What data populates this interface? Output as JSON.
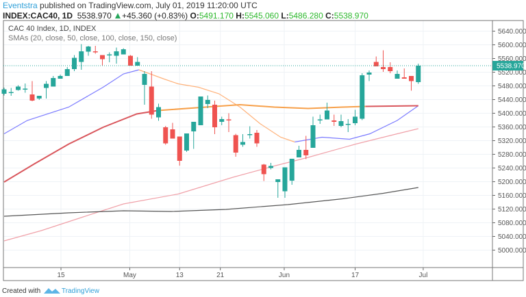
{
  "header": {
    "author": "Eventstra",
    "published_text": " published on TradingView.com, July 01, 2019 11:20:00 UTC",
    "symbol": "INDEX:CAC40, 1D",
    "last": "5538.970",
    "change": "+45.360 (+0.83%)",
    "o_label": "O:",
    "o": "5491.170",
    "h_label": "H:",
    "h": "5545.060",
    "l_label": "L:",
    "l": "5486.280",
    "c_label": "C:",
    "c": "5538.970"
  },
  "legend": {
    "title": "CAC 40 Index, 1D, INDEX",
    "indicators": "SMAs (20, close, 50, close, 100, close, 150, close)"
  },
  "footer": {
    "created_with": "Created with",
    "brand": "TradingView"
  },
  "colors": {
    "up": "#26a69a",
    "down": "#ef5350",
    "sma20": "#7b7bff",
    "sma20_alt": "#ffb27a",
    "sma50": "#f7a04a",
    "sma50_alt": "#d9565c",
    "sma100": "#f0a0a8",
    "sma150": "#555555",
    "price_line": "#26a69a"
  },
  "chart_data": {
    "type": "candlestick",
    "title": "CAC 40 Index, 1D, INDEX",
    "ylim": [
      4949,
      5671
    ],
    "yticks": [
      5000,
      5040,
      5080,
      5120,
      5160,
      5200,
      5240,
      5280,
      5320,
      5360,
      5400,
      5440,
      5480,
      5520,
      5560,
      5600,
      5640
    ],
    "ytick_format_decimals": 3,
    "xticks": [
      {
        "label": "15",
        "bar": 8.1
      },
      {
        "label": "May",
        "bar": 17.9
      },
      {
        "label": "13",
        "bar": 25
      },
      {
        "label": "21",
        "bar": 30.8
      },
      {
        "label": "Jun",
        "bar": 39.9
      },
      {
        "label": "17",
        "bar": 50
      },
      {
        "label": "Jul",
        "bar": 59.7
      }
    ],
    "last_price": {
      "value": 5538.97,
      "label": "5538.970"
    },
    "candle_format": "[open, high, low, close]",
    "candles": [
      [
        5457,
        5475,
        5452,
        5470
      ],
      [
        5462,
        5474,
        5451,
        5462
      ],
      [
        5468,
        5482,
        5466,
        5478
      ],
      [
        5472,
        5487,
        5460,
        5472
      ],
      [
        5455,
        5494,
        5435,
        5437
      ],
      [
        5443,
        5451,
        5439,
        5451
      ],
      [
        5474,
        5494,
        5443,
        5486
      ],
      [
        5478,
        5509,
        5478,
        5503
      ],
      [
        5501,
        5513,
        5501,
        5509
      ],
      [
        5509,
        5535,
        5509,
        5529
      ],
      [
        5529,
        5570,
        5523,
        5562
      ],
      [
        5550,
        5602,
        5527,
        5581
      ],
      [
        5580,
        5597,
        5568,
        5595
      ],
      [
        5581,
        5597,
        5574,
        5578
      ],
      [
        5570,
        5570,
        5540,
        5558
      ],
      [
        5572,
        5578,
        5549,
        5572
      ],
      [
        5568,
        5592,
        5545,
        5581
      ],
      [
        5572,
        5590,
        5572,
        5587
      ],
      [
        5568,
        5570,
        5539,
        5539
      ],
      [
        5539,
        5564,
        5539,
        5550
      ],
      [
        5483,
        5523,
        5425,
        5515
      ],
      [
        5478,
        5523,
        5384,
        5396
      ],
      [
        5388,
        5428,
        5378,
        5418
      ],
      [
        5359,
        5363,
        5308,
        5312
      ],
      [
        5353,
        5372,
        5326,
        5326
      ],
      [
        5332,
        5332,
        5247,
        5261
      ],
      [
        5291,
        5341,
        5287,
        5341
      ],
      [
        5347,
        5375,
        5296,
        5375
      ],
      [
        5365,
        5449,
        5365,
        5449
      ],
      [
        5427,
        5452,
        5415,
        5439
      ],
      [
        5425,
        5437,
        5339,
        5359
      ],
      [
        5375,
        5390,
        5365,
        5383
      ],
      [
        5382,
        5400,
        5345,
        5380
      ],
      [
        5336,
        5340,
        5273,
        5285
      ],
      [
        5308,
        5339,
        5302,
        5316
      ],
      [
        5339,
        5362,
        5326,
        5339
      ],
      [
        5343,
        5351,
        5302,
        5312
      ],
      [
        5250,
        5252,
        5202,
        5222
      ],
      [
        5240,
        5255,
        5236,
        5246
      ],
      [
        5199,
        5207,
        5153,
        5207
      ],
      [
        5172,
        5242,
        5153,
        5242
      ],
      [
        5203,
        5267,
        5191,
        5267
      ],
      [
        5271,
        5305,
        5271,
        5293
      ],
      [
        5293,
        5334,
        5266,
        5277
      ],
      [
        5299,
        5390,
        5299,
        5365
      ],
      [
        5382,
        5396,
        5369,
        5382
      ],
      [
        5382,
        5431,
        5382,
        5408
      ],
      [
        5379,
        5396,
        5363,
        5375
      ],
      [
        5363,
        5396,
        5359,
        5377
      ],
      [
        5369,
        5383,
        5345,
        5369
      ],
      [
        5371,
        5410,
        5365,
        5390
      ],
      [
        5384,
        5517,
        5380,
        5511
      ],
      [
        5513,
        5525,
        5494,
        5519
      ],
      [
        5550,
        5566,
        5537,
        5537
      ],
      [
        5535,
        5584,
        5521,
        5529
      ],
      [
        5535,
        5549,
        5517,
        5523
      ],
      [
        5501,
        5525,
        5501,
        5515
      ],
      [
        5505,
        5531,
        5501,
        5501
      ],
      [
        5509,
        5509,
        5466,
        5494
      ],
      [
        5491,
        5545,
        5486,
        5539
      ]
    ],
    "series": [
      {
        "name": "SMA 20",
        "segments": [
          {
            "color_key": "sma20",
            "points": [
              [
                0,
                5340
              ],
              [
                3.3,
                5379
              ],
              [
                9.2,
                5418
              ],
              [
                14.1,
                5476
              ],
              [
                17,
                5515
              ],
              [
                19.2,
                5527
              ]
            ]
          },
          {
            "color_key": "sma20_alt",
            "points": [
              [
                19.2,
                5527
              ],
              [
                22.8,
                5500
              ],
              [
                24.8,
                5486
              ],
              [
                27.7,
                5476
              ],
              [
                30.6,
                5457
              ],
              [
                33.6,
                5418
              ],
              [
                36.5,
                5369
              ],
              [
                39.4,
                5330
              ],
              [
                41.4,
                5316
              ]
            ]
          },
          {
            "color_key": "sma20",
            "points": [
              [
                41.4,
                5316
              ],
              [
                45.3,
                5330
              ],
              [
                49.2,
                5324
              ],
              [
                52.1,
                5340
              ],
              [
                56,
                5379
              ],
              [
                59,
                5422
              ]
            ]
          }
        ]
      },
      {
        "name": "SMA 50",
        "segments": [
          {
            "color_key": "sma50_alt",
            "points": [
              [
                0,
                5199
              ],
              [
                4.3,
                5252
              ],
              [
                9.2,
                5310
              ],
              [
                14.1,
                5359
              ],
              [
                18.9,
                5398
              ],
              [
                21.9,
                5408
              ]
            ]
          },
          {
            "color_key": "sma50",
            "points": [
              [
                21.9,
                5408
              ],
              [
                28.7,
                5418
              ],
              [
                33.6,
                5425
              ],
              [
                38.5,
                5418
              ],
              [
                43.3,
                5414
              ],
              [
                48.2,
                5418
              ],
              [
                51.5,
                5420
              ]
            ]
          },
          {
            "color_key": "sma50_alt",
            "points": [
              [
                51.5,
                5420
              ],
              [
                59,
                5422
              ]
            ]
          }
        ]
      },
      {
        "name": "SMA 100",
        "segments": [
          {
            "color_key": "sma100",
            "points": [
              [
                0,
                5027
              ],
              [
                5.3,
                5057
              ],
              [
                11.1,
                5096
              ],
              [
                17,
                5135
              ],
              [
                24.8,
                5164
              ],
              [
                32.6,
                5213
              ],
              [
                38.5,
                5246
              ],
              [
                43.3,
                5271
              ],
              [
                50.1,
                5310
              ],
              [
                56,
                5340
              ],
              [
                59,
                5355
              ]
            ]
          }
        ]
      },
      {
        "name": "SMA 150",
        "segments": [
          {
            "color_key": "sma150",
            "points": [
              [
                0,
                5099
              ],
              [
                9.2,
                5109
              ],
              [
                17,
                5115
              ],
              [
                23.8,
                5113
              ],
              [
                31.6,
                5119
              ],
              [
                40.4,
                5133
              ],
              [
                48.2,
                5150
              ],
              [
                54,
                5166
              ],
              [
                59,
                5183
              ]
            ]
          }
        ]
      }
    ]
  }
}
